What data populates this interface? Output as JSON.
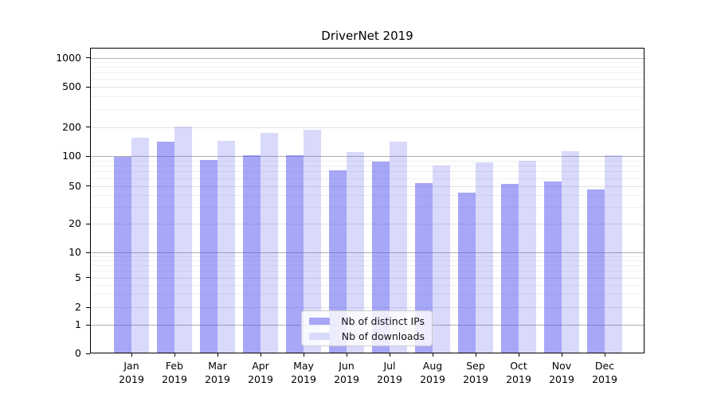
{
  "title": "DriverNet 2019",
  "chart_data": {
    "type": "bar",
    "title": "DriverNet 2019",
    "xlabel": "",
    "ylabel": "",
    "yscale": "log-style (symlog: 0 sits on the baseline, log spacing above 1)",
    "yticks": [
      0,
      1,
      2,
      5,
      10,
      20,
      50,
      100,
      200,
      500,
      1000
    ],
    "ylim": [
      0,
      1300
    ],
    "grid": true,
    "legend_position": "lower center",
    "categories": [
      "Jan 2019",
      "Feb 2019",
      "Mar 2019",
      "Apr 2019",
      "May 2019",
      "Jun 2019",
      "Jul 2019",
      "Aug 2019",
      "Sep 2019",
      "Oct 2019",
      "Nov 2019",
      "Dec 2019"
    ],
    "series": [
      {
        "name": "Nb of distinct IPs",
        "color": "#a7a7f7",
        "fill": "rgba(80,80,240,0.50)",
        "values": [
          96,
          138,
          90,
          100,
          100,
          70,
          86,
          52,
          42,
          51,
          54,
          45
        ]
      },
      {
        "name": "Nb of downloads",
        "color": "#d9d9fb",
        "fill": "rgba(80,80,240,0.22)",
        "values": [
          153,
          200,
          140,
          170,
          184,
          107,
          138,
          79,
          84,
          88,
          110,
          100
        ]
      }
    ]
  }
}
